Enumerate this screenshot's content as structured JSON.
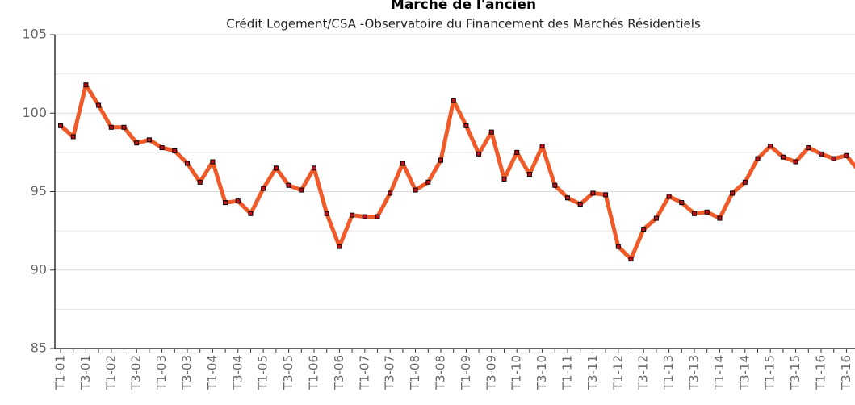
{
  "chart_data": {
    "type": "line",
    "title": "Marché de l'ancien",
    "subtitle": "Crédit Logement/CSA -Observatoire du Financement des Marchés Résidentiels",
    "categories": [
      "T1-01",
      null,
      "T3-01",
      null,
      "T1-02",
      null,
      "T3-02",
      null,
      "T1-03",
      null,
      "T3-03",
      null,
      "T1-04",
      null,
      "T3-04",
      null,
      "T1-05",
      null,
      "T3-05",
      null,
      "T1-06",
      null,
      "T3-06",
      null,
      "T1-07",
      null,
      "T3-07",
      null,
      "T1-08",
      null,
      "T3-08",
      null,
      "T1-09",
      null,
      "T3-09",
      null,
      "T1-10",
      null,
      "T3-10",
      null,
      "T1-11",
      null,
      "T3-11",
      null,
      "T1-12",
      null,
      "T3-12",
      null,
      "T1-13",
      null,
      "T3-13",
      null,
      "T1-14",
      null,
      "T3-14",
      null,
      "T1-15",
      null,
      "T3-15",
      null,
      "T1-16",
      null,
      "T3-16",
      null
    ],
    "series": [
      {
        "color": "#f05a28",
        "marker_color": "#c0101a",
        "values": [
          99.2,
          98.5,
          101.8,
          100.5,
          99.1,
          99.1,
          98.1,
          98.3,
          97.8,
          97.6,
          96.8,
          95.6,
          96.9,
          94.3,
          94.4,
          93.6,
          95.2,
          96.5,
          95.4,
          95.1,
          96.5,
          93.6,
          91.5,
          93.5,
          93.4,
          93.4,
          94.9,
          96.8,
          95.1,
          95.6,
          97.0,
          100.8,
          99.2,
          97.4,
          98.8,
          95.8,
          97.5,
          96.1,
          97.9,
          95.4,
          94.6,
          94.2,
          94.9,
          94.8,
          91.5,
          90.7,
          92.6,
          93.3,
          94.7,
          94.3,
          93.6,
          93.7,
          93.3,
          94.9,
          95.6,
          97.1,
          97.9,
          97.2,
          96.9,
          97.8,
          97.4,
          97.1,
          97.3,
          96.3
        ]
      }
    ],
    "ylim": [
      85,
      105
    ],
    "yticks": [
      85,
      90,
      95,
      100,
      105
    ],
    "yminorticks": [
      87.5,
      92.5,
      97.5,
      102.5
    ],
    "grid": true
  }
}
